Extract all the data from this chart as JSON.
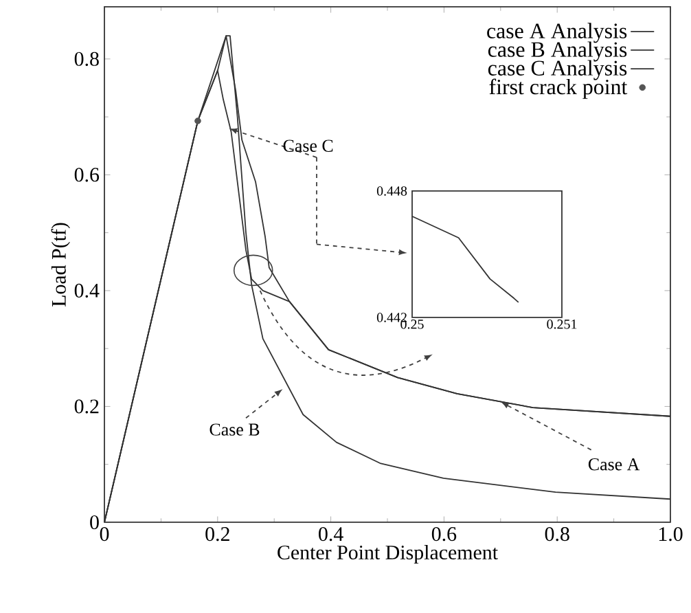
{
  "chart_data": [
    {
      "type": "line",
      "xlabel": "Center Point Displacement",
      "ylabel": "Load P(tf)",
      "xlim": [
        0,
        1.0
      ],
      "ylim": [
        0,
        0.89
      ],
      "xticks": [
        0,
        0.2,
        0.4,
        0.6,
        0.8,
        {
          "value": 1.0,
          "label": "1.0"
        }
      ],
      "yticks": [
        0,
        0.2,
        0.4,
        0.6,
        0.8
      ],
      "grid": false,
      "legend": "top right",
      "series": [
        {
          "name": "case A Analysis",
          "color": "#333333",
          "line_style": "solid",
          "marker": "none",
          "x": [
            0,
            0.165,
            0.2,
            0.215,
            0.232,
            0.243,
            0.267,
            0.284,
            0.291,
            0.327,
            0.396,
            0.518,
            0.623,
            0.757,
            1.0
          ],
          "values": [
            0,
            0.693,
            0.78,
            0.84,
            0.745,
            0.66,
            0.588,
            0.493,
            0.44,
            0.381,
            0.298,
            0.25,
            0.222,
            0.198,
            0.183
          ]
        },
        {
          "name": "case B Analysis",
          "color": "#333333",
          "line_style": "solid",
          "marker": "none",
          "x": [
            0,
            0.165,
            0.215,
            0.222,
            0.235,
            0.25,
            0.26,
            0.28,
            0.351,
            0.41,
            0.487,
            0.599,
            0.797,
            1.0
          ],
          "values": [
            0,
            0.693,
            0.84,
            0.84,
            0.7,
            0.5,
            0.41,
            0.317,
            0.186,
            0.138,
            0.102,
            0.076,
            0.052,
            0.04
          ]
        },
        {
          "name": "case C Analysis",
          "color": "#333333",
          "line_style": "solid",
          "marker": "none",
          "x": [
            0,
            0.165,
            0.2,
            0.21,
            0.224,
            0.25,
            0.26,
            0.28,
            0.327,
            0.396,
            0.518,
            0.623,
            0.757,
            1.0
          ],
          "values": [
            0,
            0.693,
            0.78,
            0.73,
            0.674,
            0.47,
            0.42,
            0.4,
            0.381,
            0.298,
            0.25,
            0.222,
            0.198,
            0.183
          ]
        },
        {
          "name": "first crack point",
          "type": "scatter",
          "color": "#555555",
          "marker": "circle",
          "x": [
            0.165
          ],
          "values": [
            0.693
          ]
        }
      ],
      "annotations": [
        {
          "text": "Case A",
          "x": 0.7,
          "y": 0.208
        },
        {
          "text": "Case B",
          "x": 0.315,
          "y": 0.23
        },
        {
          "text": "Case C",
          "x": 0.22,
          "y": 0.68
        }
      ]
    },
    {
      "type": "line",
      "xlim": [
        0.25,
        0.251
      ],
      "ylim": [
        0.442,
        0.448
      ],
      "xticks": [
        0.25,
        0.251
      ],
      "yticks": [
        0.442,
        0.448
      ],
      "series": [
        {
          "color": "#333333",
          "line_style": "solid",
          "marker": "none",
          "x": [
            0.25,
            0.25031,
            0.25052,
            0.25068,
            0.25071
          ],
          "values": [
            0.4468,
            0.44578,
            0.44383,
            0.44291,
            0.44272
          ]
        }
      ]
    }
  ]
}
